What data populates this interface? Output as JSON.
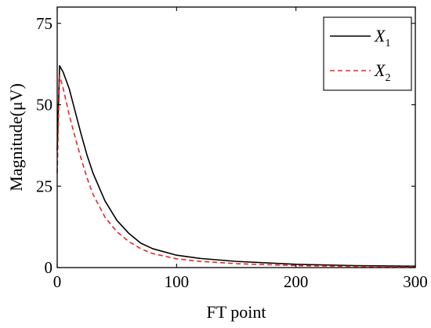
{
  "chart_data": {
    "type": "line",
    "title": "",
    "xlabel": "FT point",
    "ylabel": "Magnitude(μV)",
    "xlim": [
      0,
      300
    ],
    "ylim": [
      0,
      80
    ],
    "xticks": [
      0,
      100,
      200,
      300
    ],
    "yticks": [
      0,
      25,
      50,
      75
    ],
    "grid": false,
    "legend_position": "top-right",
    "series": [
      {
        "name": "X1",
        "legend_main": "X",
        "legend_sub": "1",
        "color": "#000000",
        "dash": "solid",
        "x": [
          0,
          2,
          5,
          10,
          15,
          20,
          25,
          30,
          40,
          50,
          60,
          70,
          80,
          100,
          120,
          150,
          200,
          250,
          300
        ],
        "y": [
          36,
          62,
          60,
          55,
          48,
          41,
          34.5,
          29,
          20.5,
          14.5,
          10.5,
          7.5,
          5.8,
          3.8,
          2.8,
          1.9,
          1.0,
          0.6,
          0.4
        ]
      },
      {
        "name": "X2",
        "legend_main": "X",
        "legend_sub": "2",
        "color": "#e8262b",
        "dash": "dashed",
        "x": [
          0,
          2,
          5,
          10,
          15,
          20,
          25,
          30,
          40,
          50,
          60,
          70,
          80,
          100,
          120,
          150,
          200,
          250,
          300
        ],
        "y": [
          29,
          59,
          55,
          47,
          40,
          33.5,
          27.5,
          22.5,
          15.5,
          11,
          8,
          5.8,
          4.3,
          2.7,
          1.9,
          1.2,
          0.6,
          0.35,
          0.2
        ]
      }
    ]
  }
}
